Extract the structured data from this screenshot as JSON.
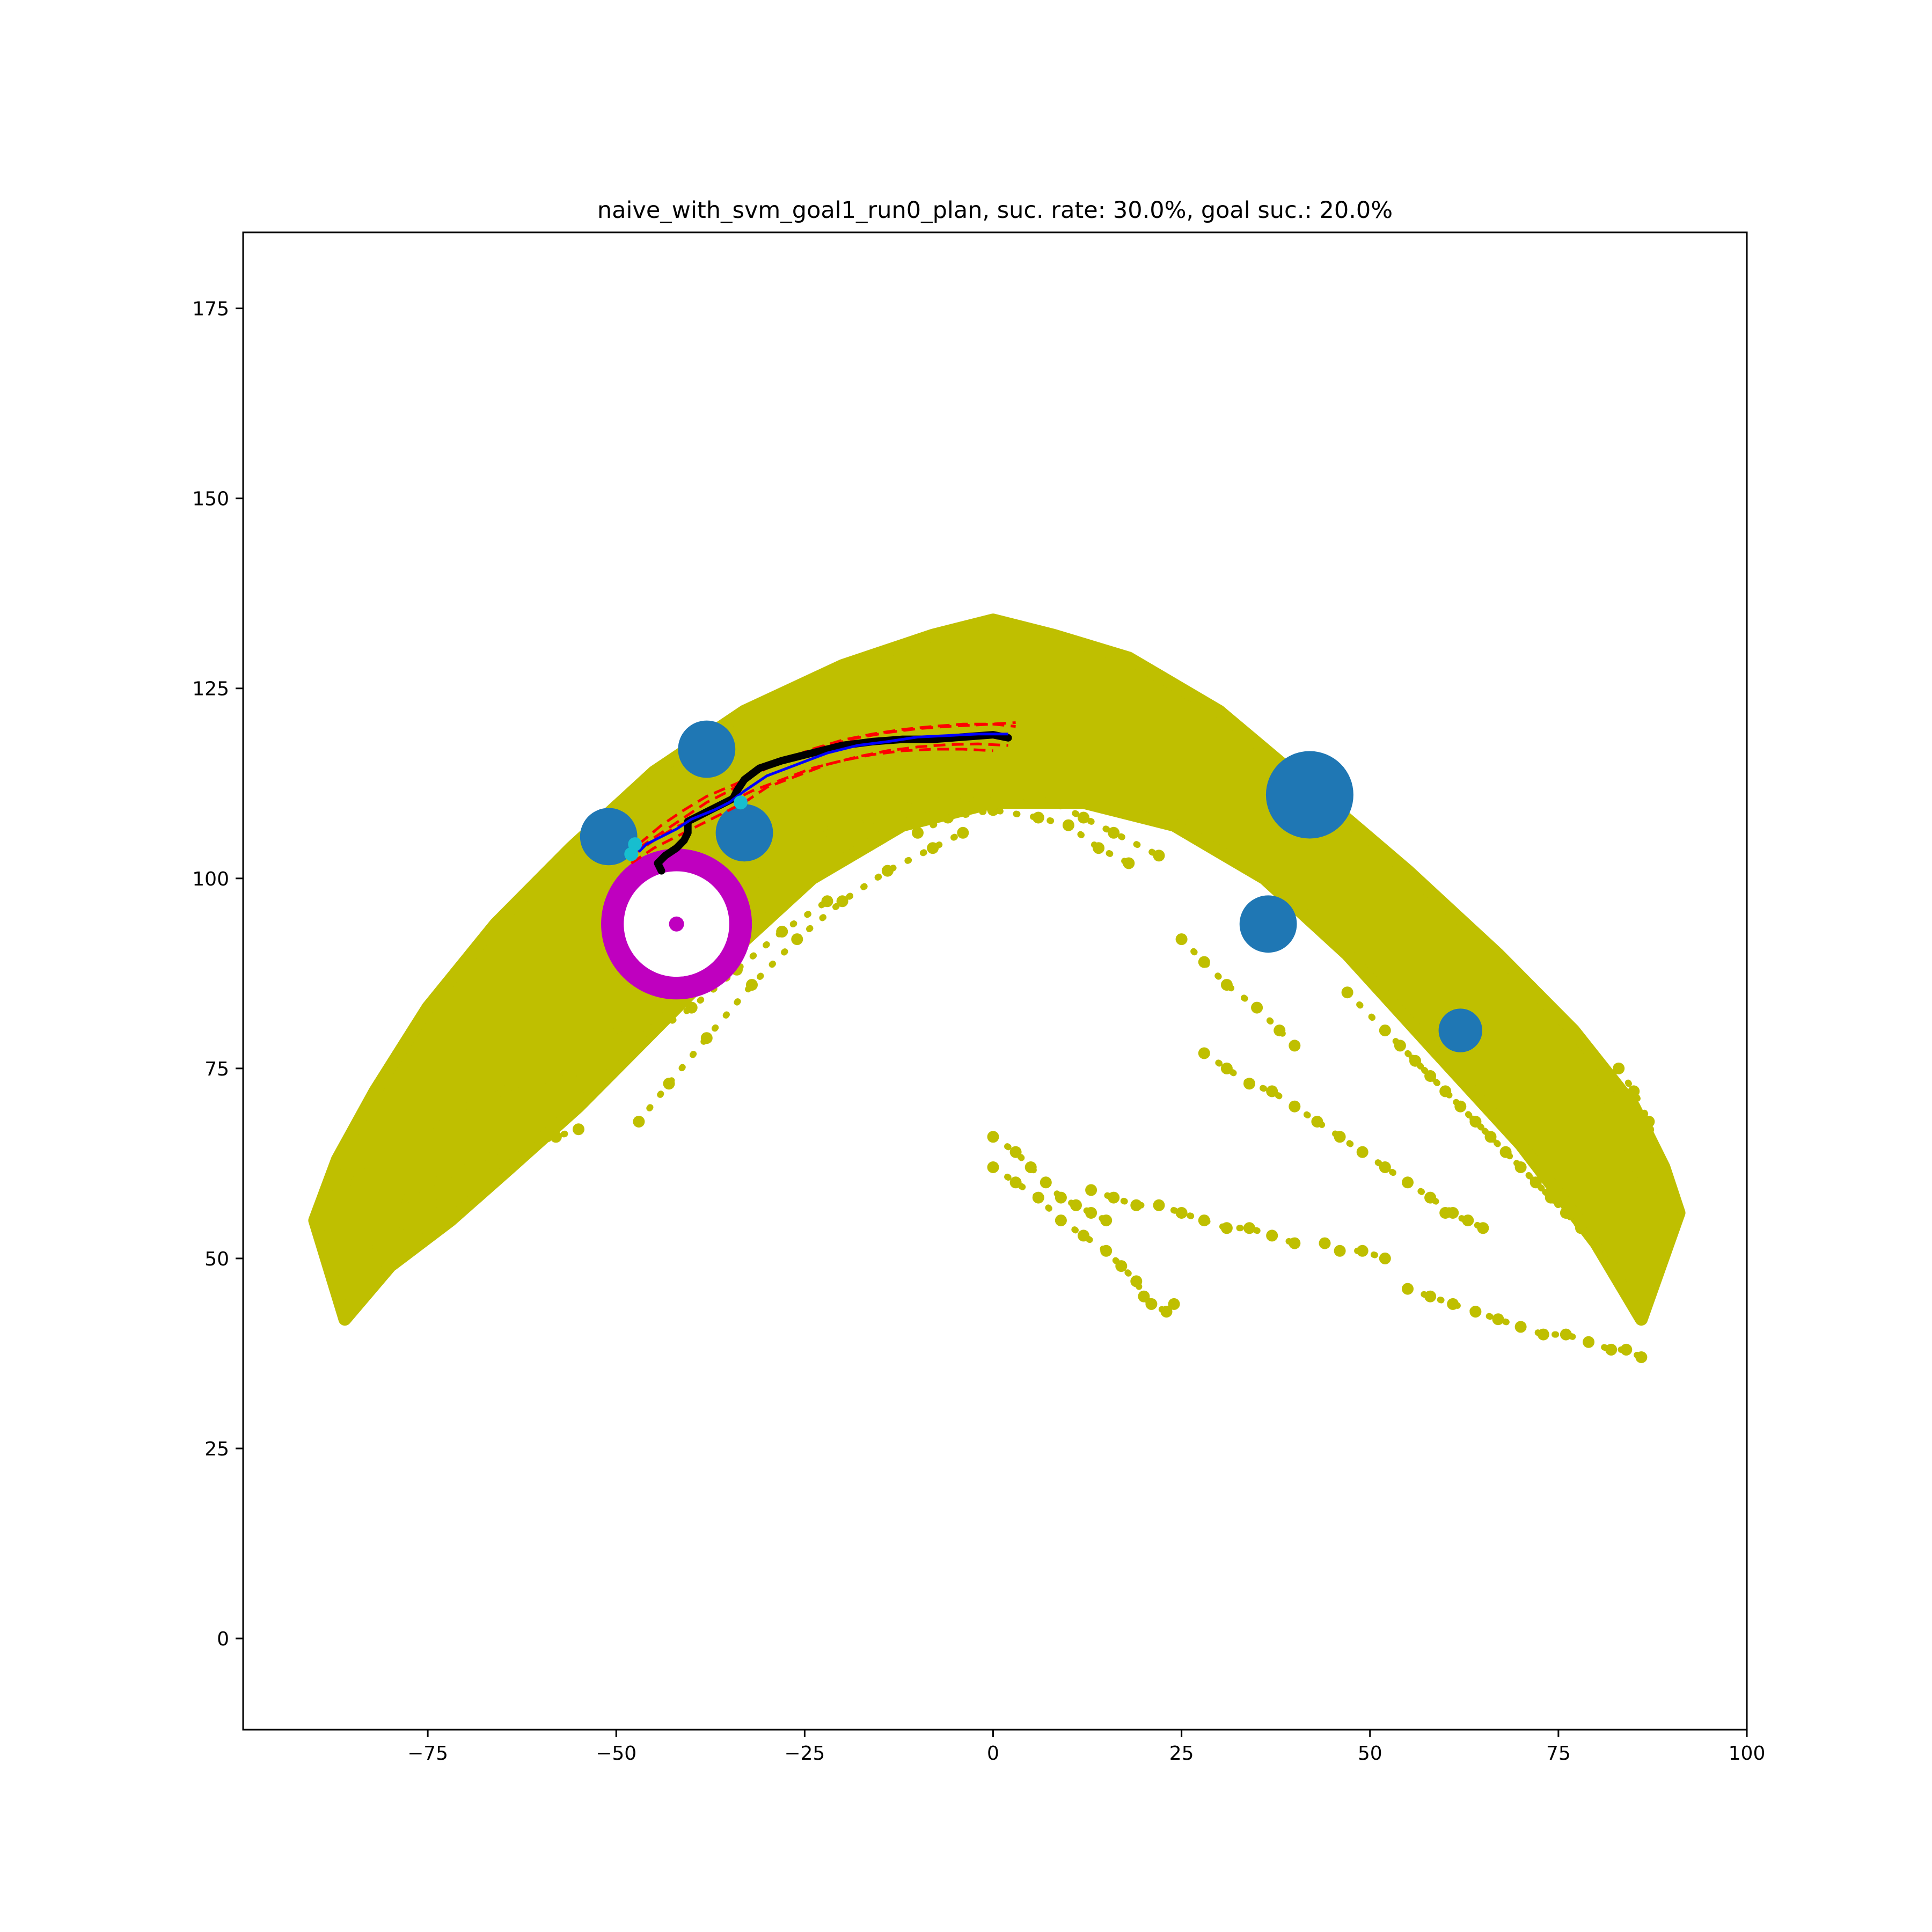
{
  "chart_data": {
    "type": "scatter",
    "title": "naive_with_svm_goal1_run0_plan, suc. rate: 30.0%, goal suc.: 20.0%",
    "xlabel": "",
    "ylabel": "",
    "xlim": [
      -99.5,
      100
    ],
    "ylim": [
      -12,
      185
    ],
    "grid": false,
    "x_ticks": [
      -75,
      -50,
      -25,
      0,
      25,
      50,
      75,
      100
    ],
    "y_ticks": [
      0,
      25,
      50,
      75,
      100,
      125,
      150,
      175
    ],
    "x_tick_labels": [
      "−75",
      "−50",
      "−25",
      "0",
      "25",
      "50",
      "75",
      "100"
    ],
    "y_tick_labels": [
      "0",
      "25",
      "50",
      "75",
      "100",
      "125",
      "150",
      "175"
    ],
    "colors": {
      "region": "#bfbf00",
      "obstacle": "#1f77b4",
      "goal_ring": "#bf00bf",
      "goal_center": "#bf00bf",
      "executed_path": "#000000",
      "planned_path": "#0000ff",
      "bounds": "#ff0000",
      "markers": "#17becf"
    },
    "region_band": {
      "outer_boundary": [
        [
          -90,
          55
        ],
        [
          -87,
          63
        ],
        [
          -82,
          72
        ],
        [
          -75,
          83
        ],
        [
          -66,
          94
        ],
        [
          -56,
          104
        ],
        [
          -45,
          114
        ],
        [
          -33,
          122
        ],
        [
          -20,
          128
        ],
        [
          -8,
          132
        ],
        [
          0,
          134
        ],
        [
          8,
          132
        ],
        [
          18,
          129
        ],
        [
          30,
          122
        ],
        [
          42,
          112
        ],
        [
          55,
          101
        ],
        [
          67,
          90
        ],
        [
          77,
          80
        ],
        [
          85,
          70
        ],
        [
          89,
          62
        ],
        [
          91,
          56
        ]
      ],
      "inner_boundary": [
        [
          86,
          42
        ],
        [
          80,
          52
        ],
        [
          70,
          65
        ],
        [
          58,
          78
        ],
        [
          47,
          90
        ],
        [
          36,
          100
        ],
        [
          24,
          107
        ],
        [
          12,
          110
        ],
        [
          0,
          110
        ],
        [
          -12,
          107
        ],
        [
          -24,
          100
        ],
        [
          -35,
          90
        ],
        [
          -45,
          80
        ],
        [
          -55,
          70
        ],
        [
          -64,
          62
        ],
        [
          -72,
          55
        ],
        [
          -80,
          49
        ],
        [
          -86,
          42
        ]
      ]
    },
    "region_scatter": [
      {
        "points": [
          [
            -50,
            80
          ],
          [
            -46,
            86
          ],
          [
            -40,
            92
          ],
          [
            -34,
            98
          ],
          [
            -28,
            103
          ],
          [
            -22,
            106
          ],
          [
            -16,
            108
          ],
          [
            -10,
            110
          ],
          [
            -4,
            111
          ],
          [
            2,
            111
          ],
          [
            8,
            110
          ],
          [
            12,
            108
          ],
          [
            16,
            106
          ],
          [
            22,
            103
          ]
        ]
      },
      {
        "points": [
          [
            -47,
            68
          ],
          [
            -43,
            73
          ],
          [
            -38,
            79
          ],
          [
            -32,
            86
          ],
          [
            -26,
            92
          ],
          [
            -20,
            97
          ],
          [
            -14,
            101
          ],
          [
            -8,
            104
          ],
          [
            -4,
            106
          ]
        ]
      },
      {
        "points": [
          [
            -52,
            75
          ],
          [
            -46,
            79
          ],
          [
            -40,
            83
          ],
          [
            -34,
            88
          ],
          [
            -28,
            93
          ],
          [
            -22,
            97
          ]
        ]
      },
      {
        "points": [
          [
            -85,
            60
          ],
          [
            -80,
            64
          ],
          [
            -75,
            67
          ],
          [
            -70,
            70
          ],
          [
            -65,
            72
          ],
          [
            -60,
            73
          ],
          [
            -56,
            74
          ]
        ]
      },
      {
        "points": [
          [
            -78,
            58
          ],
          [
            -74,
            60
          ],
          [
            -70,
            62
          ],
          [
            -66,
            64
          ],
          [
            -62,
            65
          ],
          [
            -58,
            66
          ],
          [
            -55,
            67
          ]
        ]
      },
      {
        "points": [
          [
            -82,
            52
          ],
          [
            -78,
            54
          ],
          [
            -74,
            57
          ]
        ]
      },
      {
        "points": [
          [
            25,
            92
          ],
          [
            28,
            89
          ],
          [
            31,
            86
          ],
          [
            35,
            83
          ],
          [
            38,
            80
          ],
          [
            40,
            78
          ]
        ]
      },
      {
        "points": [
          [
            47,
            85
          ],
          [
            52,
            80
          ],
          [
            56,
            76
          ],
          [
            60,
            72
          ],
          [
            64,
            68
          ],
          [
            68,
            64
          ],
          [
            72,
            60
          ],
          [
            76,
            56
          ],
          [
            80,
            52
          ],
          [
            84,
            48
          ]
        ]
      },
      {
        "points": [
          [
            54,
            78
          ],
          [
            58,
            74
          ],
          [
            62,
            70
          ],
          [
            66,
            66
          ],
          [
            70,
            62
          ],
          [
            74,
            58
          ],
          [
            78,
            54
          ],
          [
            82,
            50
          ]
        ]
      },
      {
        "points": [
          [
            80,
            72
          ],
          [
            82,
            68
          ],
          [
            84,
            64
          ],
          [
            86,
            60
          ],
          [
            88,
            58
          ],
          [
            90,
            56
          ]
        ]
      },
      {
        "points": [
          [
            83,
            75
          ],
          [
            85,
            72
          ],
          [
            87,
            68
          ],
          [
            88,
            64
          ]
        ]
      },
      {
        "points": [
          [
            28,
            77
          ],
          [
            31,
            75
          ],
          [
            34,
            73
          ],
          [
            37,
            72
          ],
          [
            40,
            70
          ],
          [
            43,
            68
          ],
          [
            46,
            66
          ],
          [
            49,
            64
          ],
          [
            52,
            62
          ],
          [
            55,
            60
          ],
          [
            58,
            58
          ],
          [
            61,
            56
          ]
        ]
      },
      {
        "points": [
          [
            60,
            56
          ],
          [
            63,
            55
          ],
          [
            65,
            54
          ]
        ]
      },
      {
        "points": [
          [
            0,
            66
          ],
          [
            3,
            64
          ],
          [
            5,
            62
          ],
          [
            7,
            60
          ],
          [
            9,
            58
          ],
          [
            11,
            57
          ],
          [
            13,
            56
          ],
          [
            15,
            55
          ]
        ]
      },
      {
        "points": [
          [
            0,
            62
          ],
          [
            3,
            60
          ],
          [
            6,
            58
          ],
          [
            9,
            55
          ],
          [
            12,
            53
          ],
          [
            15,
            51
          ],
          [
            17,
            49
          ],
          [
            19,
            47
          ],
          [
            20,
            45
          ],
          [
            21,
            44
          ],
          [
            23,
            43
          ],
          [
            24,
            44
          ]
        ]
      },
      {
        "points": [
          [
            13,
            59
          ],
          [
            16,
            58
          ],
          [
            19,
            57
          ],
          [
            22,
            57
          ],
          [
            25,
            56
          ],
          [
            28,
            55
          ],
          [
            31,
            54
          ],
          [
            34,
            54
          ],
          [
            37,
            53
          ],
          [
            40,
            52
          ]
        ]
      },
      {
        "points": [
          [
            44,
            52
          ],
          [
            46,
            51
          ],
          [
            49,
            51
          ],
          [
            52,
            50
          ]
        ]
      },
      {
        "points": [
          [
            55,
            46
          ],
          [
            58,
            45
          ],
          [
            61,
            44
          ],
          [
            64,
            43
          ],
          [
            67,
            42
          ],
          [
            70,
            41
          ],
          [
            73,
            40
          ],
          [
            76,
            40
          ],
          [
            79,
            39
          ],
          [
            82,
            38
          ],
          [
            84,
            38
          ],
          [
            86,
            37
          ]
        ]
      },
      {
        "points": [
          [
            -10,
            106
          ],
          [
            -6,
            108
          ],
          [
            0,
            109
          ],
          [
            6,
            108
          ],
          [
            10,
            107
          ],
          [
            14,
            104
          ],
          [
            18,
            102
          ]
        ]
      }
    ],
    "obstacles": [
      {
        "x": -38,
        "y": 117,
        "r": 3.8
      },
      {
        "x": -51,
        "y": 105.5,
        "r": 3.8
      },
      {
        "x": -33,
        "y": 106,
        "r": 3.8
      },
      {
        "x": 42,
        "y": 111,
        "r": 5.8
      },
      {
        "x": 36.5,
        "y": 94,
        "r": 3.8
      },
      {
        "x": 62,
        "y": 80,
        "r": 2.9
      }
    ],
    "goal": {
      "x": -42,
      "y": 94,
      "r_outer": 10,
      "r_inner": 7
    },
    "executed_path": [
      [
        -44,
        101
      ],
      [
        -44.5,
        102
      ],
      [
        -43.5,
        103
      ],
      [
        -42,
        104
      ],
      [
        -41,
        105
      ],
      [
        -40.5,
        106
      ],
      [
        -40.5,
        107.5
      ],
      [
        -38.5,
        108.5
      ],
      [
        -36.5,
        109.5
      ],
      [
        -34.5,
        110.5
      ],
      [
        -34,
        111.5
      ],
      [
        -33,
        113
      ],
      [
        -31,
        114.5
      ],
      [
        -28,
        115.5
      ],
      [
        -24,
        116.5
      ],
      [
        -20,
        117.5
      ],
      [
        -16,
        118
      ],
      [
        -12,
        118.3
      ],
      [
        -8,
        118.3
      ],
      [
        -4,
        118.6
      ],
      [
        0,
        118.9
      ],
      [
        2,
        118.5
      ]
    ],
    "planned_path": [
      [
        -47,
        103.5
      ],
      [
        -46,
        104.5
      ],
      [
        -44,
        105.5
      ],
      [
        -42,
        106.5
      ],
      [
        -40,
        107.8
      ],
      [
        -37,
        109
      ],
      [
        -35,
        110
      ],
      [
        -33,
        111.5
      ],
      [
        -30,
        113.5
      ],
      [
        -26,
        115
      ],
      [
        -22,
        116.5
      ],
      [
        -18,
        117.5
      ],
      [
        -14,
        118
      ],
      [
        -10,
        118.6
      ],
      [
        -6,
        118.8
      ],
      [
        -2,
        119
      ],
      [
        2,
        119
      ]
    ],
    "bounds": [
      [
        [
          -47,
          104
        ],
        [
          -44,
          106
        ],
        [
          -41,
          108
        ],
        [
          -38,
          110
        ],
        [
          -35,
          111.5
        ],
        [
          -32,
          113.5
        ],
        [
          -28,
          115.5
        ],
        [
          -24,
          117
        ],
        [
          -20,
          118.2
        ],
        [
          -16,
          119
        ],
        [
          -12,
          119.6
        ],
        [
          -8,
          120
        ],
        [
          -4,
          120.3
        ],
        [
          0,
          120.3
        ],
        [
          3,
          120
        ]
      ],
      [
        [
          -48,
          102
        ],
        [
          -45,
          104
        ],
        [
          -42,
          105.5
        ],
        [
          -39,
          107
        ],
        [
          -36,
          108.5
        ],
        [
          -33,
          110
        ],
        [
          -30,
          112
        ],
        [
          -26,
          113.5
        ],
        [
          -22,
          115
        ],
        [
          -18,
          116
        ],
        [
          -14,
          116.8
        ],
        [
          -10,
          117.3
        ],
        [
          -6,
          117.6
        ],
        [
          -2,
          117.7
        ],
        [
          2,
          117.5
        ]
      ],
      [
        [
          -48,
          103
        ],
        [
          -45,
          105
        ],
        [
          -42,
          106.8
        ],
        [
          -38,
          108.5
        ],
        [
          -35,
          110
        ],
        [
          -32,
          111.5
        ],
        [
          -28,
          113
        ],
        [
          -24,
          114.5
        ],
        [
          -20,
          115.5
        ],
        [
          -16,
          116.3
        ],
        [
          -12,
          116.8
        ],
        [
          -8,
          117
        ],
        [
          -4,
          117
        ],
        [
          0,
          116.8
        ]
      ],
      [
        [
          -47,
          104.5
        ],
        [
          -44,
          107
        ],
        [
          -41,
          109
        ],
        [
          -38,
          110.8
        ],
        [
          -34,
          112.5
        ],
        [
          -30,
          114.5
        ],
        [
          -26,
          116.3
        ],
        [
          -22,
          117.5
        ],
        [
          -18,
          118.5
        ],
        [
          -14,
          119.2
        ],
        [
          -10,
          119.7
        ],
        [
          -6,
          120
        ],
        [
          -2,
          120.2
        ],
        [
          3,
          120.5
        ]
      ]
    ],
    "markers": [
      {
        "x": -47.5,
        "y": 104.5
      },
      {
        "x": -48,
        "y": 103.2
      },
      {
        "x": -33.5,
        "y": 110
      }
    ]
  }
}
